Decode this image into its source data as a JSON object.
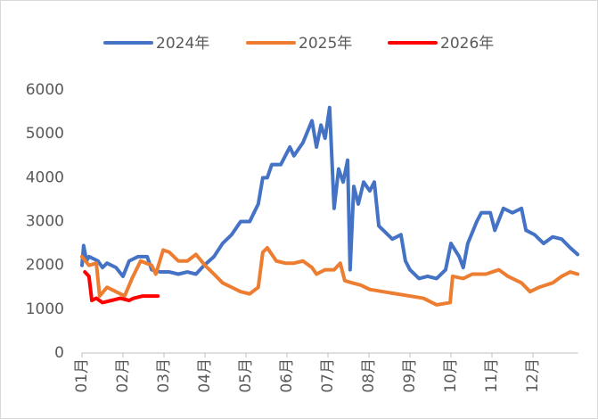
{
  "chart_data": {
    "type": "line",
    "series": [
      {
        "name": "2024年",
        "color": "#4472c4",
        "x": [
          0,
          0.04,
          0.11,
          0.17,
          0.39,
          0.5,
          0.61,
          0.83,
          1.0,
          1.15,
          1.37,
          1.59,
          1.7,
          1.91,
          2.13,
          2.35,
          2.57,
          2.78,
          2.98,
          3.22,
          3.43,
          3.65,
          3.87,
          4.09,
          4.3,
          4.41,
          4.52,
          4.63,
          4.85,
          5.07,
          5.17,
          5.39,
          5.61,
          5.72,
          5.83,
          5.93,
          6.04,
          6.15,
          6.26,
          6.37,
          6.48,
          6.54,
          6.63,
          6.74,
          6.87,
          7.02,
          7.13,
          7.24,
          7.35,
          7.57,
          7.78,
          7.89,
          8.0,
          8.22,
          8.43,
          8.65,
          8.87,
          9.0,
          9.2,
          9.3,
          9.41,
          9.63,
          9.74,
          9.96,
          10.07,
          10.28,
          10.5,
          10.72,
          10.83,
          11.04,
          11.26,
          11.48,
          11.7,
          11.91,
          12.09
        ],
        "values": [
          2000,
          2450,
          2100,
          2200,
          2100,
          1950,
          2050,
          1950,
          1750,
          2100,
          2200,
          2200,
          1900,
          1850,
          1850,
          1800,
          1850,
          1800,
          2000,
          2200,
          2500,
          2700,
          3000,
          3000,
          3400,
          4000,
          4000,
          4300,
          4300,
          4700,
          4500,
          4800,
          5300,
          4700,
          5200,
          4900,
          5600,
          3300,
          4200,
          3900,
          4400,
          1900,
          3800,
          3400,
          3900,
          3700,
          3900,
          2900,
          2800,
          2600,
          2700,
          2100,
          1900,
          1700,
          1750,
          1700,
          1900,
          2500,
          2200,
          1950,
          2500,
          3000,
          3200,
          3200,
          2800,
          3300,
          3200,
          3300,
          2800,
          2700,
          2500,
          2650,
          2600,
          2400,
          2250
        ]
      },
      {
        "name": "2025年",
        "color": "#ed7d31",
        "x": [
          0,
          0.17,
          0.35,
          0.43,
          0.61,
          0.83,
          1.04,
          1.22,
          1.43,
          1.7,
          1.8,
          1.98,
          2.13,
          2.35,
          2.57,
          2.78,
          3.0,
          3.22,
          3.43,
          3.65,
          3.87,
          4.09,
          4.3,
          4.41,
          4.52,
          4.74,
          4.96,
          5.17,
          5.39,
          5.61,
          5.72,
          5.93,
          6.15,
          6.3,
          6.41,
          6.59,
          6.8,
          7.02,
          7.35,
          7.67,
          8.0,
          8.33,
          8.54,
          8.65,
          8.98,
          9.04,
          9.3,
          9.52,
          9.85,
          10.17,
          10.39,
          10.72,
          10.93,
          11.15,
          11.48,
          11.7,
          11.91,
          12.09
        ],
        "values": [
          2200,
          2000,
          2050,
          1300,
          1500,
          1400,
          1300,
          1700,
          2100,
          2000,
          1800,
          2350,
          2300,
          2100,
          2100,
          2250,
          2000,
          1800,
          1600,
          1500,
          1400,
          1350,
          1500,
          2300,
          2400,
          2100,
          2050,
          2050,
          2100,
          1950,
          1800,
          1900,
          1900,
          2050,
          1650,
          1600,
          1550,
          1450,
          1400,
          1350,
          1300,
          1250,
          1150,
          1100,
          1150,
          1750,
          1700,
          1800,
          1800,
          1900,
          1750,
          1600,
          1400,
          1500,
          1600,
          1750,
          1850,
          1800
        ]
      },
      {
        "name": "2026年",
        "color": "#ff0000",
        "x": [
          0.07,
          0.17,
          0.24,
          0.35,
          0.5,
          0.72,
          0.93,
          1.15,
          1.26,
          1.48,
          1.7,
          1.85
        ],
        "values": [
          1850,
          1750,
          1200,
          1250,
          1150,
          1200,
          1250,
          1200,
          1250,
          1300,
          1300,
          1300
        ]
      }
    ],
    "xlim": [
      0,
      12.1
    ],
    "xticks": [
      {
        "value": 0,
        "label": "01月"
      },
      {
        "value": 1,
        "label": "02月"
      },
      {
        "value": 2,
        "label": "03月"
      },
      {
        "value": 3,
        "label": "04月"
      },
      {
        "value": 4,
        "label": "05月"
      },
      {
        "value": 5,
        "label": "06月"
      },
      {
        "value": 6,
        "label": "07月"
      },
      {
        "value": 7,
        "label": "08月"
      },
      {
        "value": 8,
        "label": "09月"
      },
      {
        "value": 9,
        "label": "10月"
      },
      {
        "value": 10,
        "label": "11月"
      },
      {
        "value": 11,
        "label": "12月"
      }
    ],
    "ylim": [
      0,
      6000
    ],
    "yticks": [
      0,
      1000,
      2000,
      3000,
      4000,
      5000,
      6000
    ],
    "legend": "top"
  }
}
